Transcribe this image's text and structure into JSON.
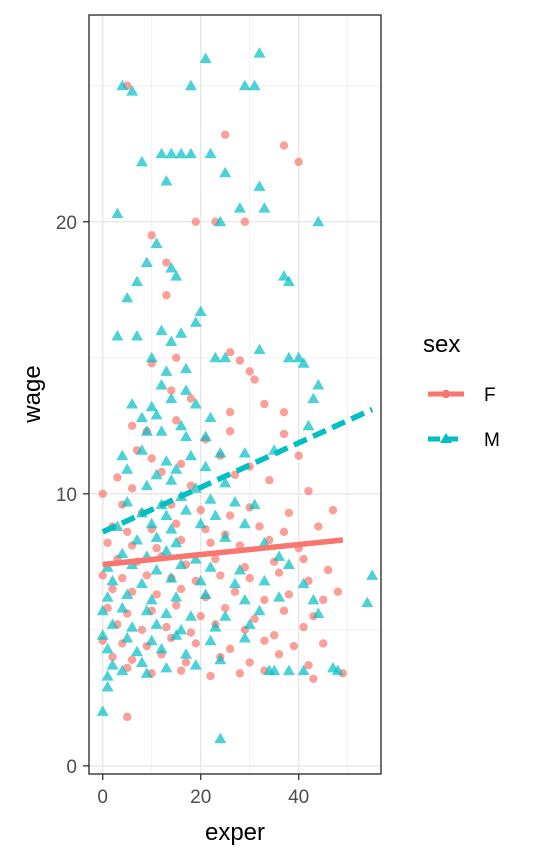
{
  "chart_data": {
    "type": "scatter",
    "title": "",
    "xlabel": "exper",
    "ylabel": "wage",
    "xlim": [
      -2.8,
      56.8
    ],
    "ylim": [
      -0.3,
      27.6
    ],
    "x_ticks": [
      0,
      20,
      40
    ],
    "y_ticks": [
      0,
      10,
      20
    ],
    "x_tick_labels": [
      "0",
      "20",
      "40"
    ],
    "y_tick_labels": [
      "0",
      "10",
      "20"
    ],
    "grid": true,
    "legend": {
      "title": "sex",
      "position": "right",
      "entries": [
        {
          "label": "F",
          "color": "#F8766D",
          "shape": "circle",
          "linestyle": "solid"
        },
        {
          "label": "M",
          "color": "#00BFC4",
          "shape": "triangle",
          "linestyle": "dashed"
        }
      ]
    },
    "series": [
      {
        "name": "F",
        "color": "#F8766D",
        "marker": "circle",
        "trend": {
          "x": [
            0,
            49
          ],
          "y": [
            7.4,
            8.3
          ]
        },
        "points": [
          [
            5,
            25
          ],
          [
            25,
            23.2
          ],
          [
            37,
            22.8
          ],
          [
            40,
            22.2
          ],
          [
            19,
            20
          ],
          [
            23,
            20
          ],
          [
            29,
            20
          ],
          [
            10,
            19.5
          ],
          [
            13,
            18.5
          ],
          [
            13,
            17.3
          ],
          [
            15,
            15
          ],
          [
            10,
            14.8
          ],
          [
            26,
            15.2
          ],
          [
            28,
            14.9
          ],
          [
            30,
            14.5
          ],
          [
            31,
            14.2
          ],
          [
            14,
            13.8
          ],
          [
            18,
            13.5
          ],
          [
            33,
            13.3
          ],
          [
            26,
            13
          ],
          [
            37,
            13
          ],
          [
            6,
            12.5
          ],
          [
            9,
            12.3
          ],
          [
            15,
            12.7
          ],
          [
            21,
            12
          ],
          [
            26,
            12.3
          ],
          [
            37,
            12.2
          ],
          [
            7,
            11.6
          ],
          [
            10,
            11.3
          ],
          [
            16,
            11.1
          ],
          [
            24,
            11.4
          ],
          [
            30,
            11
          ],
          [
            40,
            11.4
          ],
          [
            3,
            10.6
          ],
          [
            6,
            10.2
          ],
          [
            12,
            10.8
          ],
          [
            18,
            10.3
          ],
          [
            27,
            10.7
          ],
          [
            34,
            10.5
          ],
          [
            42,
            10.1
          ],
          [
            0,
            10
          ],
          [
            4,
            9.6
          ],
          [
            8,
            9.3
          ],
          [
            14,
            9.6
          ],
          [
            20,
            9.4
          ],
          [
            26,
            9.2
          ],
          [
            30,
            9.5
          ],
          [
            38,
            9.3
          ],
          [
            47,
            9.4
          ],
          [
            2,
            8.8
          ],
          [
            5,
            8.6
          ],
          [
            10,
            8.7
          ],
          [
            15,
            8.9
          ],
          [
            21,
            8.7
          ],
          [
            25,
            8.5
          ],
          [
            32,
            8.8
          ],
          [
            37,
            8.6
          ],
          [
            44,
            8.8
          ],
          [
            1,
            8.2
          ],
          [
            6,
            8.1
          ],
          [
            11,
            8
          ],
          [
            16,
            8.3
          ],
          [
            22,
            8.2
          ],
          [
            28,
            8.1
          ],
          [
            34,
            8.3
          ],
          [
            40,
            8
          ],
          [
            3,
            7.6
          ],
          [
            7,
            7.5
          ],
          [
            12,
            7.7
          ],
          [
            17,
            7.4
          ],
          [
            23,
            7.6
          ],
          [
            29,
            7.3
          ],
          [
            35,
            7.5
          ],
          [
            41,
            7.6
          ],
          [
            46,
            7.2
          ],
          [
            0,
            7
          ],
          [
            4,
            6.9
          ],
          [
            9,
            7
          ],
          [
            14,
            6.9
          ],
          [
            19,
            6.8
          ],
          [
            24,
            7
          ],
          [
            30,
            6.9
          ],
          [
            36,
            7.1
          ],
          [
            42,
            6.8
          ],
          [
            2,
            6.5
          ],
          [
            6,
            6.4
          ],
          [
            11,
            6.3
          ],
          [
            16,
            6.5
          ],
          [
            21,
            6.2
          ],
          [
            27,
            6.4
          ],
          [
            33,
            6.1
          ],
          [
            38,
            6.3
          ],
          [
            45,
            6.1
          ],
          [
            48,
            6.4
          ],
          [
            1,
            5.8
          ],
          [
            5,
            5.6
          ],
          [
            10,
            5.7
          ],
          [
            15,
            5.9
          ],
          [
            20,
            5.5
          ],
          [
            25,
            5.8
          ],
          [
            31,
            5.4
          ],
          [
            37,
            5.7
          ],
          [
            43,
            5.5
          ],
          [
            3,
            5.2
          ],
          [
            8,
            5
          ],
          [
            13,
            5.1
          ],
          [
            18,
            4.9
          ],
          [
            23,
            5.2
          ],
          [
            29,
            5
          ],
          [
            35,
            4.8
          ],
          [
            41,
            5.1
          ],
          [
            0,
            4.6
          ],
          [
            4,
            4.5
          ],
          [
            9,
            4.4
          ],
          [
            14,
            4.7
          ],
          [
            19,
            4.5
          ],
          [
            26,
            4.3
          ],
          [
            33,
            4.6
          ],
          [
            39,
            4.4
          ],
          [
            45,
            4.5
          ],
          [
            2,
            4
          ],
          [
            6,
            3.9
          ],
          [
            12,
            4.1
          ],
          [
            17,
            3.8
          ],
          [
            24,
            4
          ],
          [
            30,
            3.8
          ],
          [
            36,
            4.1
          ],
          [
            42,
            3.7
          ],
          [
            49,
            3.4
          ],
          [
            5,
            3.6
          ],
          [
            10,
            3.4
          ],
          [
            16,
            3.5
          ],
          [
            22,
            3.3
          ],
          [
            28,
            3.4
          ],
          [
            33,
            3.5
          ],
          [
            43,
            3.2
          ],
          [
            5,
            1.8
          ]
        ]
      },
      {
        "name": "M",
        "color": "#00BFC4",
        "marker": "triangle",
        "trend": {
          "x": [
            0,
            55
          ],
          "y": [
            8.6,
            13.1
          ]
        },
        "points": [
          [
            4,
            25
          ],
          [
            18,
            25
          ],
          [
            29,
            25
          ],
          [
            31,
            25
          ],
          [
            21,
            26
          ],
          [
            32,
            26.2
          ],
          [
            6,
            24.8
          ],
          [
            12,
            22.5
          ],
          [
            14,
            22.5
          ],
          [
            16,
            22.5
          ],
          [
            18,
            22.5
          ],
          [
            22,
            22.5
          ],
          [
            8,
            22.2
          ],
          [
            13,
            21.5
          ],
          [
            25,
            21.8
          ],
          [
            32,
            21.3
          ],
          [
            28,
            20.5
          ],
          [
            33,
            20.5
          ],
          [
            44,
            20
          ],
          [
            3,
            20.3
          ],
          [
            11,
            19.2
          ],
          [
            24,
            20
          ],
          [
            9,
            18.5
          ],
          [
            14,
            18.3
          ],
          [
            15,
            18
          ],
          [
            7,
            17.8
          ],
          [
            37,
            18
          ],
          [
            38,
            17.8
          ],
          [
            5,
            17.2
          ],
          [
            20,
            16.7
          ],
          [
            19,
            16.3
          ],
          [
            3,
            15.8
          ],
          [
            7,
            15.8
          ],
          [
            12,
            16
          ],
          [
            16,
            15.9
          ],
          [
            14,
            15.6
          ],
          [
            10,
            15
          ],
          [
            17,
            14.6
          ],
          [
            13,
            14.5
          ],
          [
            23,
            15
          ],
          [
            25,
            15
          ],
          [
            32,
            15.3
          ],
          [
            38,
            15
          ],
          [
            40,
            15
          ],
          [
            41,
            14.8
          ],
          [
            12,
            14
          ],
          [
            17,
            13.8
          ],
          [
            44,
            14
          ],
          [
            6,
            13.3
          ],
          [
            10,
            13.2
          ],
          [
            14,
            13.5
          ],
          [
            19,
            13.3
          ],
          [
            43,
            13.5
          ],
          [
            8,
            12.8
          ],
          [
            11,
            12.9
          ],
          [
            16,
            12.5
          ],
          [
            22,
            12.8
          ],
          [
            42,
            12.5
          ],
          [
            9,
            12.3
          ],
          [
            12,
            12.3
          ],
          [
            17,
            12.1
          ],
          [
            21,
            12.1
          ],
          [
            4,
            11.4
          ],
          [
            8,
            11.6
          ],
          [
            13,
            11.2
          ],
          [
            18,
            11.4
          ],
          [
            24,
            11.5
          ],
          [
            29,
            11.5
          ],
          [
            35,
            11.6
          ],
          [
            5,
            10.9
          ],
          [
            11,
            10.7
          ],
          [
            15,
            10.9
          ],
          [
            21,
            11
          ],
          [
            9,
            10.3
          ],
          [
            14,
            10.5
          ],
          [
            19,
            10.2
          ],
          [
            25,
            10.4
          ],
          [
            5,
            9.7
          ],
          [
            12,
            9.6
          ],
          [
            16,
            9.9
          ],
          [
            22,
            9.8
          ],
          [
            27,
            9.7
          ],
          [
            31,
            9.6
          ],
          [
            8,
            9.3
          ],
          [
            13,
            9.2
          ],
          [
            17,
            9.4
          ],
          [
            23,
            9.2
          ],
          [
            3,
            8.8
          ],
          [
            10,
            8.9
          ],
          [
            14,
            8.7
          ],
          [
            20,
            8.9
          ],
          [
            29,
            8.9
          ],
          [
            7,
            8.3
          ],
          [
            11,
            8.4
          ],
          [
            15,
            8.2
          ],
          [
            25,
            8.4
          ],
          [
            33,
            8.2
          ],
          [
            4,
            7.8
          ],
          [
            9,
            7.7
          ],
          [
            13,
            7.9
          ],
          [
            19,
            7.6
          ],
          [
            36,
            7.7
          ],
          [
            1,
            7.3
          ],
          [
            6,
            7.4
          ],
          [
            11,
            7.2
          ],
          [
            16,
            7.4
          ],
          [
            22,
            7.3
          ],
          [
            28,
            7.2
          ],
          [
            38,
            7.4
          ],
          [
            2,
            6.8
          ],
          [
            8,
            6.7
          ],
          [
            14,
            6.9
          ],
          [
            20,
            6.8
          ],
          [
            27,
            6.7
          ],
          [
            33,
            6.8
          ],
          [
            41,
            6.7
          ],
          [
            55,
            7
          ],
          [
            1,
            6.2
          ],
          [
            5,
            6.3
          ],
          [
            10,
            6.1
          ],
          [
            15,
            6.2
          ],
          [
            21,
            6.3
          ],
          [
            29,
            6.1
          ],
          [
            36,
            6.2
          ],
          [
            43,
            6.1
          ],
          [
            54,
            6
          ],
          [
            0,
            5.7
          ],
          [
            4,
            5.8
          ],
          [
            9,
            5.7
          ],
          [
            13,
            5.6
          ],
          [
            18,
            5.5
          ],
          [
            25,
            5.5
          ],
          [
            32,
            5.7
          ],
          [
            44,
            5.6
          ],
          [
            2,
            5.2
          ],
          [
            6,
            5.1
          ],
          [
            11,
            5.2
          ],
          [
            16,
            5
          ],
          [
            23,
            5.1
          ],
          [
            30,
            5.2
          ],
          [
            0,
            4.8
          ],
          [
            5,
            4.7
          ],
          [
            10,
            4.6
          ],
          [
            15,
            4.8
          ],
          [
            22,
            4.6
          ],
          [
            29,
            4.7
          ],
          [
            1,
            4.3
          ],
          [
            7,
            4.2
          ],
          [
            12,
            4.3
          ],
          [
            17,
            4.1
          ],
          [
            2,
            3.7
          ],
          [
            8,
            3.8
          ],
          [
            13,
            3.6
          ],
          [
            19,
            3.7
          ],
          [
            24,
            3.9
          ],
          [
            1,
            3.3
          ],
          [
            4,
            3.5
          ],
          [
            9,
            3.4
          ],
          [
            34,
            3.5
          ],
          [
            35,
            3.5
          ],
          [
            38,
            3.5
          ],
          [
            41,
            3.5
          ],
          [
            47,
            3.6
          ],
          [
            48,
            3.5
          ],
          [
            1,
            2.9
          ],
          [
            0,
            2
          ],
          [
            24,
            1
          ]
        ]
      }
    ]
  }
}
